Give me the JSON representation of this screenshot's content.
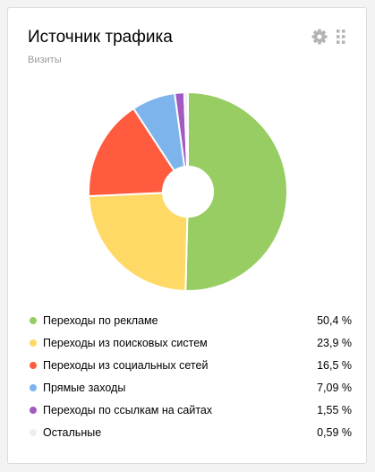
{
  "widget": {
    "title": "Источник трафика",
    "subtitle": "Визиты",
    "settings_icon": "gear-icon",
    "drag_icon": "drag-grid-icon"
  },
  "chart_data": {
    "type": "pie",
    "title": "Источник трафика",
    "subtitle": "Визиты",
    "donut": true,
    "legend_position": "bottom",
    "slices": [
      {
        "label": "Переходы по рекламе",
        "value": 50.4,
        "display": "50,4 %",
        "color": "#98cd63"
      },
      {
        "label": "Переходы из поисковых систем",
        "value": 23.9,
        "display": "23,9 %",
        "color": "#ffd966"
      },
      {
        "label": "Переходы из социальных сетей",
        "value": 16.5,
        "display": "16,5 %",
        "color": "#ff5b3f"
      },
      {
        "label": "Прямые заходы",
        "value": 7.09,
        "display": "7,09 %",
        "color": "#7cb4eb"
      },
      {
        "label": "Переходы по ссылкам на сайтах",
        "value": 1.55,
        "display": "1,55 %",
        "color": "#a25ac2"
      },
      {
        "label": "Остальные",
        "value": 0.59,
        "display": "0,59 %",
        "color": "#eeeeee"
      }
    ]
  }
}
